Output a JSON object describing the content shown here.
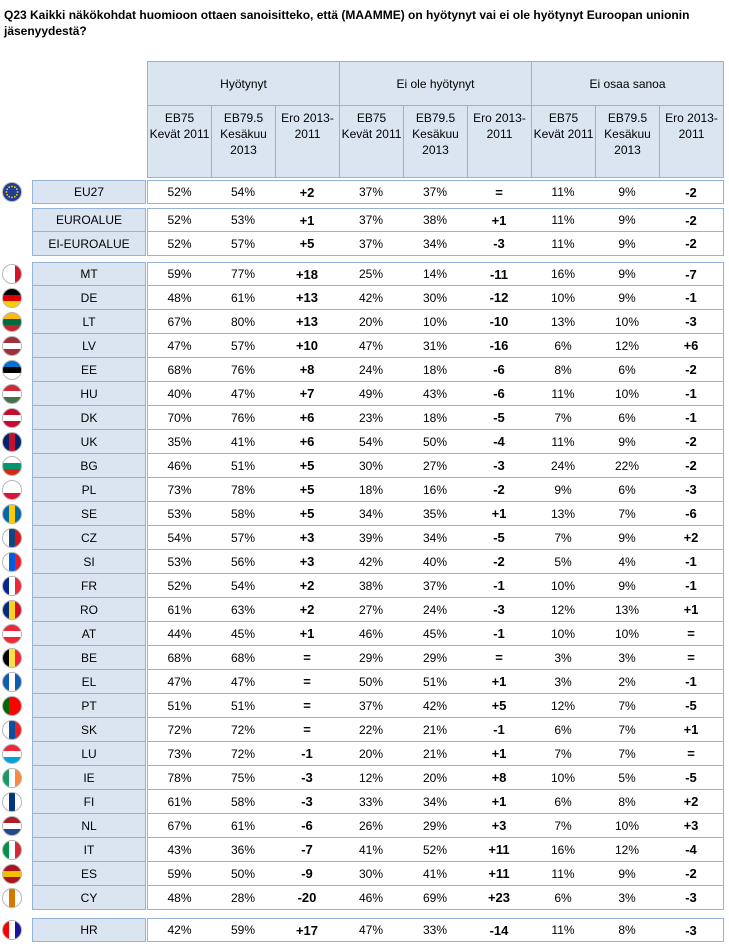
{
  "title": "Q23 Kaikki näkökohdat huomioon ottaen sanoisitteko, että (MAAMME) on hyötynyt vai ei ole hyötynyt Euroopan unionin jäsenyydestä?",
  "groups": [
    "Hyötynyt",
    "Ei ole hyötynyt",
    "Ei osaa sanoa"
  ],
  "subheaders": [
    "EB75 Kevät 2011",
    "EB79.5 Kesäkuu 2013",
    "Ero 2013-2011"
  ],
  "flag_colors": {
    "EU27": [
      "#1f3c96",
      "#1f3c96",
      "#1f3c96"
    ],
    "MT": [
      "#ffffff",
      "#ffffff",
      "#cf142b"
    ],
    "DE": [
      "#000000",
      "#dd0000",
      "#ffce00"
    ],
    "LT": [
      "#fdb913",
      "#006a44",
      "#c1272d"
    ],
    "LV": [
      "#9e3039",
      "#ffffff",
      "#9e3039"
    ],
    "EE": [
      "#0072ce",
      "#000000",
      "#ffffff"
    ],
    "HU": [
      "#cd2a3e",
      "#ffffff",
      "#436f4d"
    ],
    "DK": [
      "#c60c30",
      "#ffffff",
      "#c60c30"
    ],
    "UK": [
      "#012169",
      "#c8102e",
      "#012169"
    ],
    "BG": [
      "#ffffff",
      "#00966e",
      "#d62612"
    ],
    "PL": [
      "#ffffff",
      "#ffffff",
      "#dc143c"
    ],
    "SE": [
      "#006aa7",
      "#fecc00",
      "#006aa7"
    ],
    "CZ": [
      "#ffffff",
      "#11457e",
      "#d7141a"
    ],
    "SI": [
      "#ffffff",
      "#005ce5",
      "#ed1c24"
    ],
    "FR": [
      "#002395",
      "#ffffff",
      "#ed2939"
    ],
    "RO": [
      "#002b7f",
      "#fcd116",
      "#ce1126"
    ],
    "AT": [
      "#ed2939",
      "#ffffff",
      "#ed2939"
    ],
    "BE": [
      "#000000",
      "#fae042",
      "#ed2939"
    ],
    "EL": [
      "#0d5eaf",
      "#ffffff",
      "#0d5eaf"
    ],
    "PT": [
      "#006600",
      "#ff0000",
      "#ff0000"
    ],
    "SK": [
      "#ffffff",
      "#0b4ea2",
      "#ee1c25"
    ],
    "LU": [
      "#ed2939",
      "#ffffff",
      "#00a1de"
    ],
    "IE": [
      "#169b62",
      "#ffffff",
      "#ff883e"
    ],
    "FI": [
      "#ffffff",
      "#003580",
      "#ffffff"
    ],
    "NL": [
      "#ae1c28",
      "#ffffff",
      "#21468b"
    ],
    "IT": [
      "#009246",
      "#ffffff",
      "#ce2b37"
    ],
    "ES": [
      "#aa151b",
      "#f1bf00",
      "#aa151b"
    ],
    "CY": [
      "#ffffff",
      "#d57800",
      "#ffffff"
    ],
    "HR": [
      "#ff0000",
      "#ffffff",
      "#171796"
    ]
  },
  "rows": [
    {
      "name": "EU27",
      "flag": "EU27",
      "v": [
        "52%",
        "54%",
        "+2",
        "37%",
        "37%",
        "=",
        "11%",
        "9%",
        "-2"
      ]
    },
    {
      "name": "EUROALUE",
      "flag": "",
      "v": [
        "52%",
        "53%",
        "+1",
        "37%",
        "38%",
        "+1",
        "11%",
        "9%",
        "-2"
      ]
    },
    {
      "name": "EI-EUROALUE",
      "flag": "",
      "v": [
        "52%",
        "57%",
        "+5",
        "37%",
        "34%",
        "-3",
        "11%",
        "9%",
        "-2"
      ]
    },
    {
      "name": "MT",
      "flag": "MT",
      "v": [
        "59%",
        "77%",
        "+18",
        "25%",
        "14%",
        "-11",
        "16%",
        "9%",
        "-7"
      ]
    },
    {
      "name": "DE",
      "flag": "DE",
      "v": [
        "48%",
        "61%",
        "+13",
        "42%",
        "30%",
        "-12",
        "10%",
        "9%",
        "-1"
      ]
    },
    {
      "name": "LT",
      "flag": "LT",
      "v": [
        "67%",
        "80%",
        "+13",
        "20%",
        "10%",
        "-10",
        "13%",
        "10%",
        "-3"
      ]
    },
    {
      "name": "LV",
      "flag": "LV",
      "v": [
        "47%",
        "57%",
        "+10",
        "47%",
        "31%",
        "-16",
        "6%",
        "12%",
        "+6"
      ]
    },
    {
      "name": "EE",
      "flag": "EE",
      "v": [
        "68%",
        "76%",
        "+8",
        "24%",
        "18%",
        "-6",
        "8%",
        "6%",
        "-2"
      ]
    },
    {
      "name": "HU",
      "flag": "HU",
      "v": [
        "40%",
        "47%",
        "+7",
        "49%",
        "43%",
        "-6",
        "11%",
        "10%",
        "-1"
      ]
    },
    {
      "name": "DK",
      "flag": "DK",
      "v": [
        "70%",
        "76%",
        "+6",
        "23%",
        "18%",
        "-5",
        "7%",
        "6%",
        "-1"
      ]
    },
    {
      "name": "UK",
      "flag": "UK",
      "v": [
        "35%",
        "41%",
        "+6",
        "54%",
        "50%",
        "-4",
        "11%",
        "9%",
        "-2"
      ]
    },
    {
      "name": "BG",
      "flag": "BG",
      "v": [
        "46%",
        "51%",
        "+5",
        "30%",
        "27%",
        "-3",
        "24%",
        "22%",
        "-2"
      ]
    },
    {
      "name": "PL",
      "flag": "PL",
      "v": [
        "73%",
        "78%",
        "+5",
        "18%",
        "16%",
        "-2",
        "9%",
        "6%",
        "-3"
      ]
    },
    {
      "name": "SE",
      "flag": "SE",
      "v": [
        "53%",
        "58%",
        "+5",
        "34%",
        "35%",
        "+1",
        "13%",
        "7%",
        "-6"
      ]
    },
    {
      "name": "CZ",
      "flag": "CZ",
      "v": [
        "54%",
        "57%",
        "+3",
        "39%",
        "34%",
        "-5",
        "7%",
        "9%",
        "+2"
      ]
    },
    {
      "name": "SI",
      "flag": "SI",
      "v": [
        "53%",
        "56%",
        "+3",
        "42%",
        "40%",
        "-2",
        "5%",
        "4%",
        "-1"
      ]
    },
    {
      "name": "FR",
      "flag": "FR",
      "v": [
        "52%",
        "54%",
        "+2",
        "38%",
        "37%",
        "-1",
        "10%",
        "9%",
        "-1"
      ]
    },
    {
      "name": "RO",
      "flag": "RO",
      "v": [
        "61%",
        "63%",
        "+2",
        "27%",
        "24%",
        "-3",
        "12%",
        "13%",
        "+1"
      ]
    },
    {
      "name": "AT",
      "flag": "AT",
      "v": [
        "44%",
        "45%",
        "+1",
        "46%",
        "45%",
        "-1",
        "10%",
        "10%",
        "="
      ]
    },
    {
      "name": "BE",
      "flag": "BE",
      "v": [
        "68%",
        "68%",
        "=",
        "29%",
        "29%",
        "=",
        "3%",
        "3%",
        "="
      ]
    },
    {
      "name": "EL",
      "flag": "EL",
      "v": [
        "47%",
        "47%",
        "=",
        "50%",
        "51%",
        "+1",
        "3%",
        "2%",
        "-1"
      ]
    },
    {
      "name": "PT",
      "flag": "PT",
      "v": [
        "51%",
        "51%",
        "=",
        "37%",
        "42%",
        "+5",
        "12%",
        "7%",
        "-5"
      ]
    },
    {
      "name": "SK",
      "flag": "SK",
      "v": [
        "72%",
        "72%",
        "=",
        "22%",
        "21%",
        "-1",
        "6%",
        "7%",
        "+1"
      ]
    },
    {
      "name": "LU",
      "flag": "LU",
      "v": [
        "73%",
        "72%",
        "-1",
        "20%",
        "21%",
        "+1",
        "7%",
        "7%",
        "="
      ]
    },
    {
      "name": "IE",
      "flag": "IE",
      "v": [
        "78%",
        "75%",
        "-3",
        "12%",
        "20%",
        "+8",
        "10%",
        "5%",
        "-5"
      ]
    },
    {
      "name": "FI",
      "flag": "FI",
      "v": [
        "61%",
        "58%",
        "-3",
        "33%",
        "34%",
        "+1",
        "6%",
        "8%",
        "+2"
      ]
    },
    {
      "name": "NL",
      "flag": "NL",
      "v": [
        "67%",
        "61%",
        "-6",
        "26%",
        "29%",
        "+3",
        "7%",
        "10%",
        "+3"
      ]
    },
    {
      "name": "IT",
      "flag": "IT",
      "v": [
        "43%",
        "36%",
        "-7",
        "41%",
        "52%",
        "+11",
        "16%",
        "12%",
        "-4"
      ]
    },
    {
      "name": "ES",
      "flag": "ES",
      "v": [
        "59%",
        "50%",
        "-9",
        "30%",
        "41%",
        "+11",
        "11%",
        "9%",
        "-2"
      ]
    },
    {
      "name": "CY",
      "flag": "CY",
      "v": [
        "48%",
        "28%",
        "-20",
        "46%",
        "69%",
        "+23",
        "6%",
        "3%",
        "-3"
      ]
    },
    {
      "name": "HR",
      "flag": "HR",
      "v": [
        "42%",
        "59%",
        "+17",
        "47%",
        "33%",
        "-14",
        "11%",
        "8%",
        "-3"
      ]
    }
  ]
}
